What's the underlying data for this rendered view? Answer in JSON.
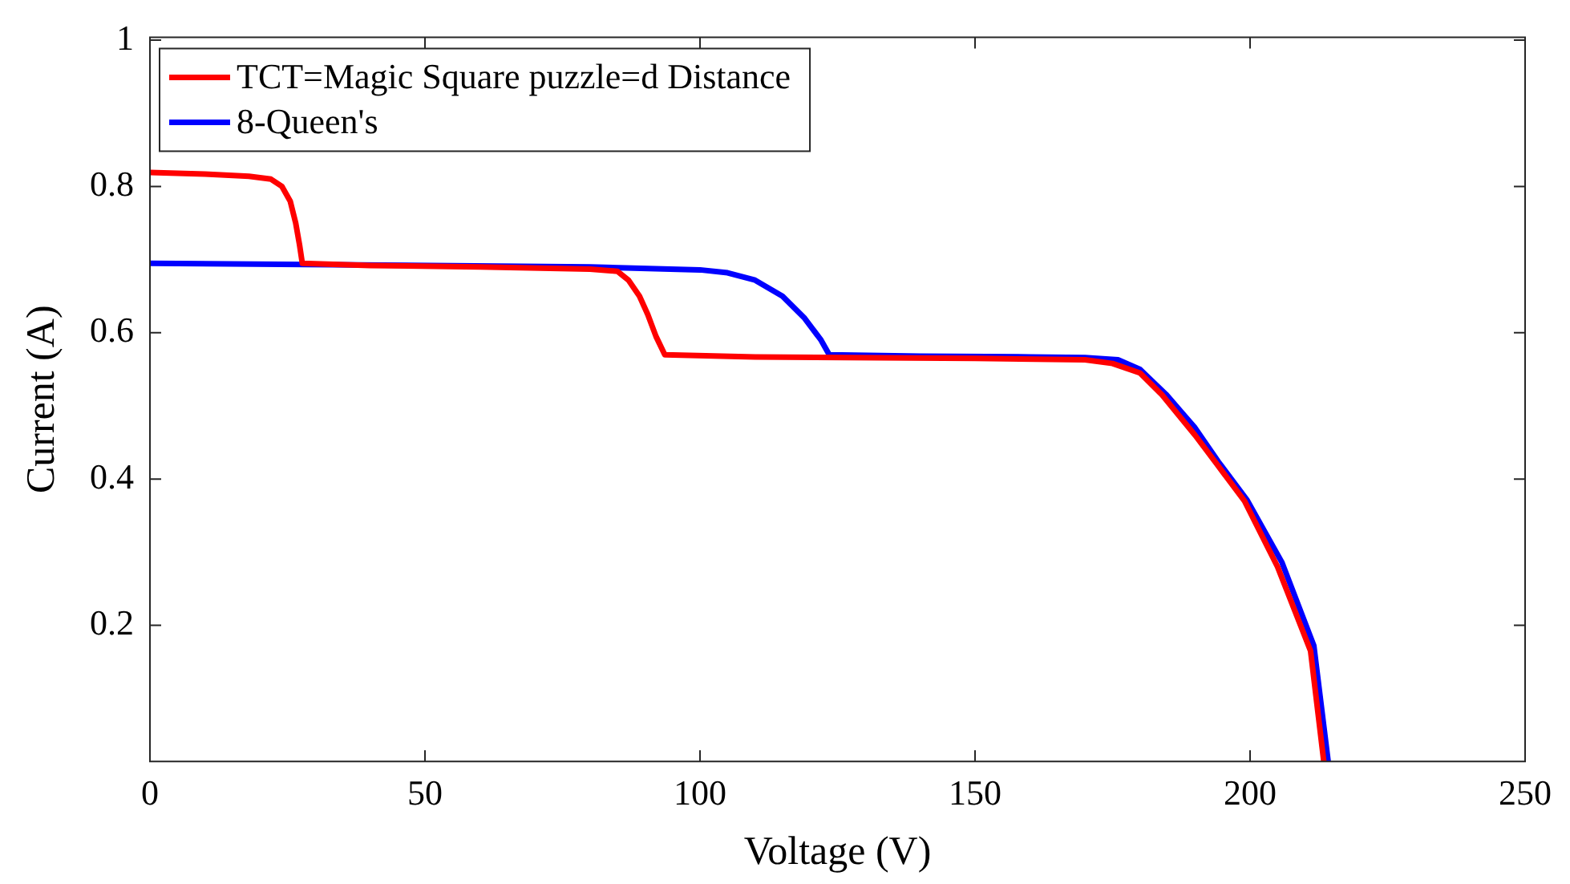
{
  "chart_data": {
    "type": "line",
    "xlabel": "Voltage (V)",
    "ylabel": "Current (A)",
    "xlim": [
      0,
      250
    ],
    "xticks": [
      0,
      50,
      100,
      150,
      200,
      250
    ],
    "ylim": [
      0.014,
      1.004
    ],
    "yticks": [
      0.2,
      0.4,
      0.6,
      0.8,
      1
    ],
    "grid": false,
    "legend": "top left",
    "marker": "none",
    "line_style": "solid",
    "series": [
      {
        "name": "TCT=Magic Square puzzle=d Distance",
        "color": "#ff0000",
        "x": [
          0,
          10,
          18,
          22,
          24,
          25.5,
          26.5,
          27.2,
          27.7,
          40,
          60,
          80,
          85,
          87,
          89,
          90.5,
          92,
          93.6,
          110,
          150,
          170,
          175,
          180,
          184,
          190,
          194,
          199,
          205,
          211,
          213.4
        ],
        "values": [
          0.819,
          0.817,
          0.814,
          0.81,
          0.8,
          0.78,
          0.75,
          0.72,
          0.695,
          0.692,
          0.69,
          0.687,
          0.684,
          0.672,
          0.65,
          0.625,
          0.595,
          0.57,
          0.567,
          0.565,
          0.563,
          0.558,
          0.545,
          0.515,
          0.46,
          0.42,
          0.37,
          0.28,
          0.165,
          0.014
        ]
      },
      {
        "name": "8-Queen's",
        "color": "#0000ff",
        "x": [
          0,
          80,
          100,
          105,
          110,
          115,
          119,
          122,
          123.5,
          140,
          160,
          170,
          176,
          180,
          184.7,
          190,
          194.2,
          199.4,
          205.8,
          211.6,
          214.2
        ],
        "values": [
          0.695,
          0.69,
          0.686,
          0.682,
          0.672,
          0.65,
          0.62,
          0.59,
          0.57,
          0.568,
          0.567,
          0.566,
          0.563,
          0.55,
          0.516,
          0.47,
          0.424,
          0.372,
          0.286,
          0.172,
          0.014
        ]
      }
    ]
  }
}
